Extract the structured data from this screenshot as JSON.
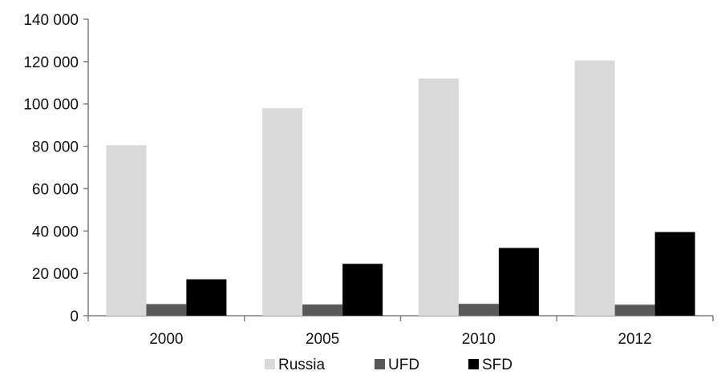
{
  "chart_data": {
    "type": "bar",
    "categories": [
      "2000",
      "2005",
      "2010",
      "2012"
    ],
    "series": [
      {
        "name": "Russia",
        "color": "#d9d9d9",
        "values": [
          80500,
          98000,
          112000,
          120500
        ]
      },
      {
        "name": "UFD",
        "color": "#595959",
        "values": [
          5500,
          5300,
          5600,
          5200
        ]
      },
      {
        "name": "SFD",
        "color": "#000000",
        "values": [
          17200,
          24500,
          32000,
          39500
        ]
      }
    ],
    "yticks": [
      "0",
      "20 000",
      "40 000",
      "60 000",
      "80 000",
      "100 000",
      "120 000",
      "140 000"
    ],
    "ylim": [
      0,
      140000
    ],
    "grid": false,
    "legend_position": "bottom"
  }
}
